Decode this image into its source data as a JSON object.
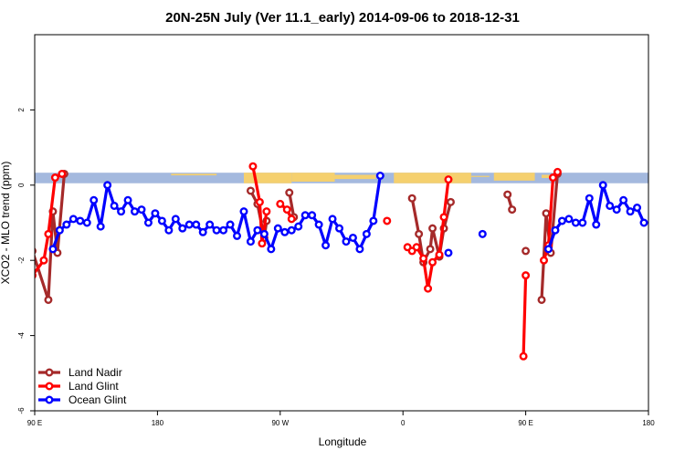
{
  "chart_data": {
    "type": "line",
    "title": "20N-25N July (Ver 11.1_early)   2014-09-06 to 2018-12-31",
    "xlabel": "Longitude",
    "ylabel": "XCO2 - MLO trend (ppm)",
    "xlim": [
      -90,
      180
    ],
    "ylim": [
      -6,
      4
    ],
    "x_ticks": [
      {
        "value": -90,
        "label": "90 E"
      },
      {
        "value": -36,
        "label": "180"
      },
      {
        "value": 18,
        "label": "90 W"
      },
      {
        "value": 72,
        "label": "0"
      },
      {
        "value": 126,
        "label": "90 E"
      },
      {
        "value": 180,
        "label": "180"
      }
    ],
    "y_ticks": [
      {
        "value": -6,
        "label": "-6"
      },
      {
        "value": -4,
        "label": "-4"
      },
      {
        "value": -2,
        "label": "-2"
      },
      {
        "value": 0,
        "label": "0"
      },
      {
        "value": 2,
        "label": "2"
      }
    ],
    "legend_position": "bottom-left",
    "map_strip": {
      "ymin": 0.05,
      "ymax": 0.33,
      "ocean_color": "#a4b9de",
      "land_color": "#f5d06e"
    },
    "series": [
      {
        "name": "Land Nadir",
        "color": "#a52a2a",
        "segments": [
          [
            [
              -91,
              -1.75
            ],
            [
              -84,
              -3.05
            ],
            [
              -82,
              -0.7
            ],
            [
              -80,
              -1.8
            ],
            [
              -77,
              0.3
            ]
          ],
          [
            [
              5,
              -0.15
            ],
            [
              8,
              -0.5
            ],
            [
              11,
              -1.4
            ],
            [
              12,
              -0.95
            ]
          ],
          [
            [
              22,
              -0.2
            ],
            [
              24,
              -0.85
            ]
          ],
          [
            [
              76,
              -0.35
            ],
            [
              79,
              -1.3
            ],
            [
              81,
              -2.05
            ],
            [
              84,
              -1.7
            ],
            [
              85,
              -1.15
            ],
            [
              88,
              -1.9
            ],
            [
              90,
              -1.15
            ],
            [
              93,
              -0.45
            ]
          ],
          [
            [
              118,
              -0.25
            ],
            [
              120,
              -0.65
            ]
          ],
          [
            [
              126,
              -1.75
            ]
          ],
          [
            [
              133,
              -3.05
            ],
            [
              135,
              -0.75
            ],
            [
              137,
              -1.8
            ],
            [
              140,
              0.3
            ]
          ]
        ]
      },
      {
        "name": "Land Glint",
        "color": "#ff0000",
        "segments": [
          [
            [
              -91,
              -2.4
            ],
            [
              -86,
              -2.0
            ],
            [
              -84,
              -1.3
            ],
            [
              -81,
              0.2
            ],
            [
              -78,
              0.3
            ]
          ],
          [
            [
              6,
              0.5
            ],
            [
              9,
              -0.45
            ],
            [
              10,
              -1.55
            ],
            [
              12,
              -0.7
            ]
          ],
          [
            [
              18,
              -0.5
            ],
            [
              21,
              -0.65
            ],
            [
              23,
              -0.9
            ]
          ],
          [
            [
              65,
              -0.95
            ]
          ],
          [
            [
              74,
              -1.65
            ],
            [
              76,
              -1.75
            ],
            [
              78,
              -1.65
            ],
            [
              81,
              -1.95
            ],
            [
              83,
              -2.75
            ],
            [
              85,
              -2.05
            ],
            [
              88,
              -1.85
            ],
            [
              90,
              -0.85
            ],
            [
              92,
              0.15
            ]
          ],
          [
            [
              125,
              -4.55
            ],
            [
              126,
              -2.4
            ]
          ],
          [
            [
              134,
              -2.0
            ],
            [
              136,
              -1.6
            ],
            [
              138,
              0.2
            ],
            [
              140,
              0.35
            ]
          ]
        ]
      },
      {
        "name": "Ocean Glint",
        "color": "#0000ff",
        "segments": [
          [
            [
              -82,
              -1.7
            ],
            [
              -79,
              -1.2
            ],
            [
              -76,
              -1.05
            ],
            [
              -73,
              -0.9
            ],
            [
              -70,
              -0.95
            ],
            [
              -67,
              -1.0
            ],
            [
              -64,
              -0.4
            ],
            [
              -61,
              -1.1
            ],
            [
              -58,
              0.0
            ],
            [
              -55,
              -0.55
            ],
            [
              -52,
              -0.7
            ],
            [
              -49,
              -0.4
            ],
            [
              -46,
              -0.7
            ],
            [
              -43,
              -0.65
            ],
            [
              -40,
              -1.0
            ],
            [
              -37,
              -0.75
            ],
            [
              -34,
              -0.95
            ],
            [
              -31,
              -1.2
            ],
            [
              -28,
              -0.9
            ],
            [
              -25,
              -1.15
            ],
            [
              -22,
              -1.05
            ],
            [
              -19,
              -1.05
            ],
            [
              -16,
              -1.25
            ],
            [
              -13,
              -1.05
            ],
            [
              -10,
              -1.2
            ],
            [
              -7,
              -1.2
            ],
            [
              -4,
              -1.05
            ],
            [
              -1,
              -1.35
            ],
            [
              2,
              -0.7
            ],
            [
              5,
              -1.5
            ],
            [
              8,
              -1.2
            ],
            [
              11,
              -1.3
            ],
            [
              14,
              -1.7
            ],
            [
              17,
              -1.15
            ],
            [
              20,
              -1.25
            ],
            [
              23,
              -1.2
            ],
            [
              26,
              -1.1
            ],
            [
              29,
              -0.8
            ],
            [
              32,
              -0.8
            ],
            [
              35,
              -1.05
            ],
            [
              38,
              -1.6
            ],
            [
              41,
              -0.9
            ],
            [
              44,
              -1.15
            ],
            [
              47,
              -1.5
            ],
            [
              50,
              -1.4
            ],
            [
              53,
              -1.7
            ],
            [
              56,
              -1.3
            ],
            [
              59,
              -0.95
            ],
            [
              62,
              0.25
            ]
          ],
          [
            [
              92,
              -1.8
            ]
          ],
          [
            [
              107,
              -1.3
            ]
          ],
          [
            [
              136,
              -1.7
            ],
            [
              139,
              -1.2
            ],
            [
              142,
              -0.95
            ],
            [
              145,
              -0.9
            ],
            [
              148,
              -1.0
            ],
            [
              151,
              -1.0
            ],
            [
              154,
              -0.35
            ],
            [
              157,
              -1.05
            ],
            [
              160,
              0.0
            ],
            [
              163,
              -0.55
            ],
            [
              166,
              -0.65
            ],
            [
              169,
              -0.4
            ],
            [
              172,
              -0.7
            ],
            [
              175,
              -0.6
            ],
            [
              178,
              -1.0
            ]
          ]
        ]
      }
    ]
  }
}
